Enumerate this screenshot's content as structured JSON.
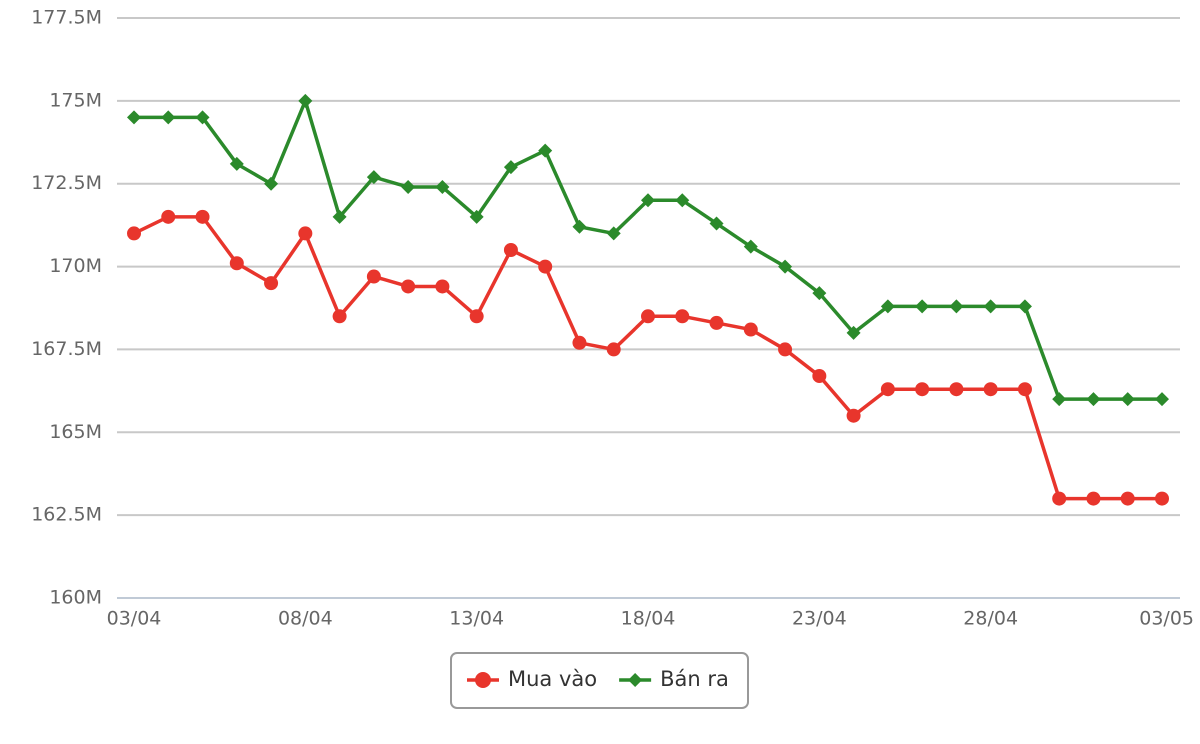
{
  "chart_data": {
    "type": "line",
    "categories": [
      "03/04",
      null,
      null,
      null,
      null,
      "08/04",
      null,
      null,
      null,
      null,
      "13/04",
      null,
      null,
      null,
      null,
      "18/04",
      null,
      null,
      null,
      null,
      "23/04",
      null,
      null,
      null,
      null,
      "28/04",
      null,
      null,
      null,
      null,
      "03/05"
    ],
    "series": [
      {
        "name": "Mua vào",
        "color": "#e8352c",
        "marker": "circle",
        "values": [
          171.0,
          171.5,
          171.5,
          170.1,
          169.5,
          171.0,
          168.5,
          169.7,
          169.4,
          169.4,
          168.5,
          170.5,
          170.0,
          167.7,
          167.5,
          168.5,
          168.5,
          168.3,
          168.1,
          167.5,
          166.7,
          165.5,
          166.3,
          166.3,
          166.3,
          166.3,
          166.3,
          163.0,
          163.0,
          163.0,
          163.0
        ]
      },
      {
        "name": "Bán ra",
        "color": "#2b8a2b",
        "marker": "diamond",
        "values": [
          174.5,
          174.5,
          174.5,
          173.1,
          172.5,
          175.0,
          171.5,
          172.7,
          172.4,
          172.4,
          171.5,
          173.0,
          173.5,
          171.2,
          171.0,
          172.0,
          172.0,
          171.3,
          170.6,
          170.0,
          169.2,
          168.0,
          168.8,
          168.8,
          168.8,
          168.8,
          168.8,
          166.0,
          166.0,
          166.0,
          166.0
        ]
      }
    ],
    "ylim": [
      160,
      177.5
    ],
    "yticks": [
      {
        "value": 160,
        "label": "160M"
      },
      {
        "value": 162.5,
        "label": "162.5M"
      },
      {
        "value": 165,
        "label": "165M"
      },
      {
        "value": 167.5,
        "label": "167.5M"
      },
      {
        "value": 170,
        "label": "170M"
      },
      {
        "value": 172.5,
        "label": "172.5M"
      },
      {
        "value": 175,
        "label": "175M"
      },
      {
        "value": 177.5,
        "label": "177.5M"
      }
    ],
    "grid": true
  }
}
